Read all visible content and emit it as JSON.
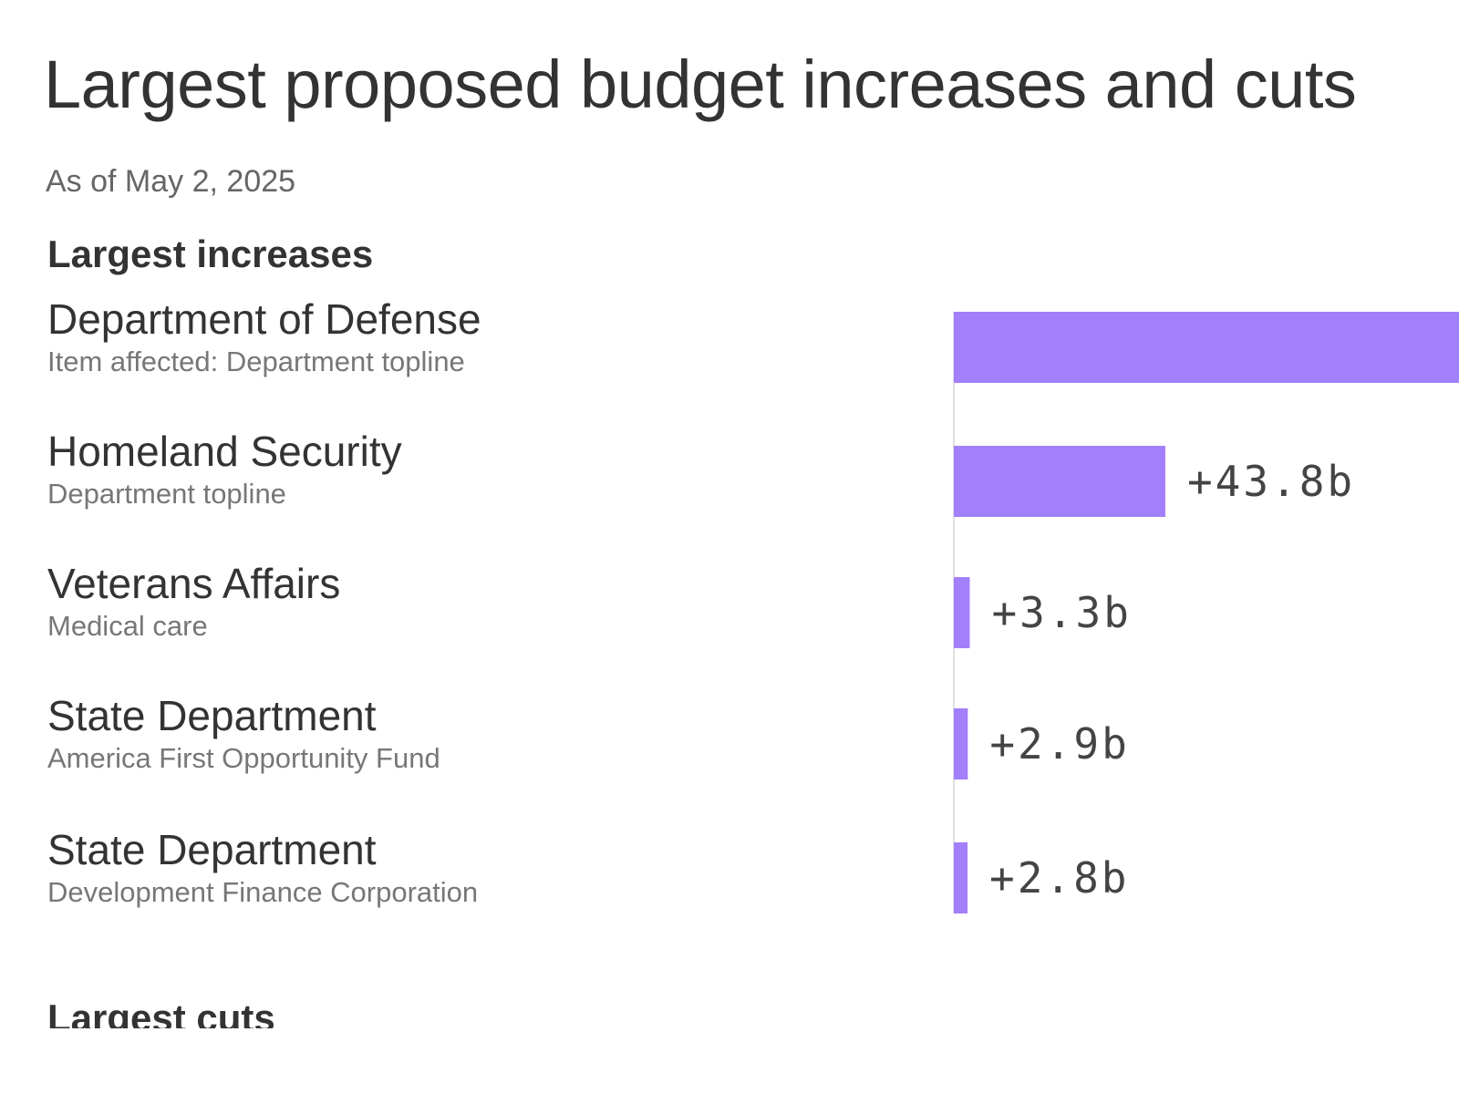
{
  "title": "Largest proposed budget increases and cuts",
  "subtitle": "As of May 2, 2025",
  "sections": {
    "increases_label": "Largest increases",
    "cuts_label": "Largest cuts"
  },
  "colors": {
    "bar": "#a27ffb",
    "axis": "#e0e0e0"
  },
  "chart_data": {
    "type": "bar",
    "orientation": "horizontal",
    "title": "Largest proposed budget increases and cuts",
    "subtitle": "As of May 2, 2025",
    "categories": [
      {
        "name": "Department of Defense",
        "item": "Item affected: Department topline"
      },
      {
        "name": "Homeland Security",
        "item": "Department topline"
      },
      {
        "name": "Veterans Affairs",
        "item": "Medical care"
      },
      {
        "name": "State Department",
        "item": "America First Opportunity Fund"
      },
      {
        "name": "State Department",
        "item": "Development Finance Corporation"
      }
    ],
    "values": [
      113.3,
      43.8,
      3.3,
      2.9,
      2.8
    ],
    "value_labels": [
      "",
      "+43.8b",
      "+3.3b",
      "+2.9b",
      "+2.8b"
    ],
    "units": "billion dollars",
    "xlim": [
      0,
      113.3
    ]
  }
}
